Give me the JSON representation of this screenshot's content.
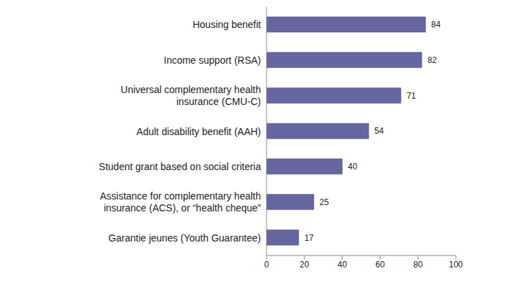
{
  "chart_data": {
    "type": "bar",
    "orientation": "horizontal",
    "categories": [
      "Housing benefit",
      "Income support (RSA)",
      "Universal complementary health insurance (CMU-C)",
      "Adult disability benefit (AAH)",
      "Student grant based on social criteria",
      "Assistance for complementary health insurance (ACS), or “health cheque”",
      "Garantie jeunes (Youth Guarantee)"
    ],
    "values": [
      84,
      82,
      71,
      54,
      40,
      25,
      17
    ],
    "color": "#6666a0",
    "xlim": [
      0,
      100
    ],
    "xticks": [
      0,
      20,
      40,
      60,
      80,
      100
    ],
    "grid": false,
    "data_labels": true
  }
}
